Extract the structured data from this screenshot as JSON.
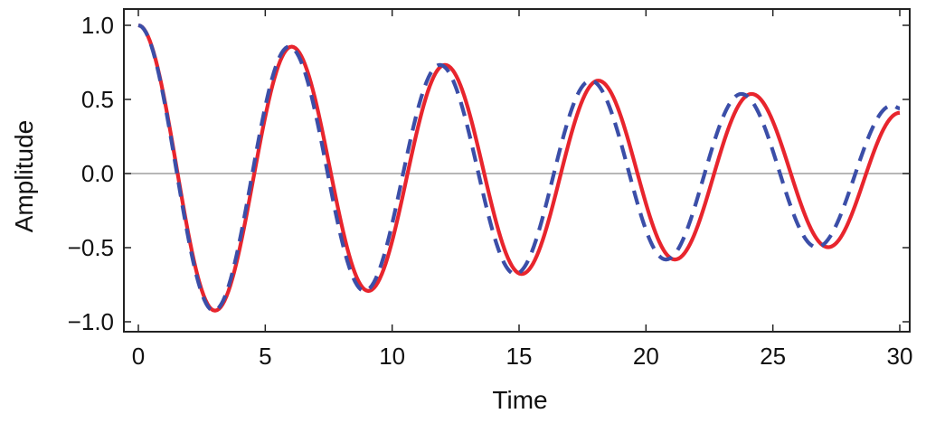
{
  "chart_data": {
    "type": "line",
    "title": "",
    "xlabel": "Time",
    "ylabel": "Amplitude",
    "xlim": [
      0,
      30
    ],
    "ylim": [
      -1.0,
      1.0
    ],
    "x_ticks": [
      0,
      5,
      10,
      15,
      20,
      25,
      30
    ],
    "y_ticks": [
      -1.0,
      -0.5,
      0.0,
      0.5,
      1.0
    ],
    "x_tick_labels": [
      "0",
      "5",
      "10",
      "15",
      "20",
      "25",
      "30"
    ],
    "y_tick_labels": [
      "−1.0",
      "−0.5",
      "0.0",
      "0.5",
      "1.0"
    ],
    "zero_line": true,
    "grid": false,
    "frame": true,
    "series": [
      {
        "style": "solid",
        "color": "#e8252d",
        "x": [
          0,
          3.02,
          6.04,
          9.06,
          12.08,
          15.1,
          18.12,
          21.14,
          24.16,
          27.18,
          30
        ],
        "values": [
          1.0,
          -0.925,
          0.856,
          -0.792,
          0.733,
          -0.678,
          0.627,
          -0.58,
          0.537,
          -0.497,
          0.41
        ]
      },
      {
        "style": "dashed",
        "color": "#3b4ea8",
        "x": [
          0,
          2.97,
          5.94,
          8.91,
          11.88,
          14.85,
          17.82,
          20.79,
          23.76,
          26.73,
          29.7,
          30
        ],
        "values": [
          1.0,
          -0.925,
          0.856,
          -0.792,
          0.733,
          -0.678,
          0.627,
          -0.58,
          0.537,
          -0.497,
          0.46,
          0.44
        ]
      }
    ]
  }
}
